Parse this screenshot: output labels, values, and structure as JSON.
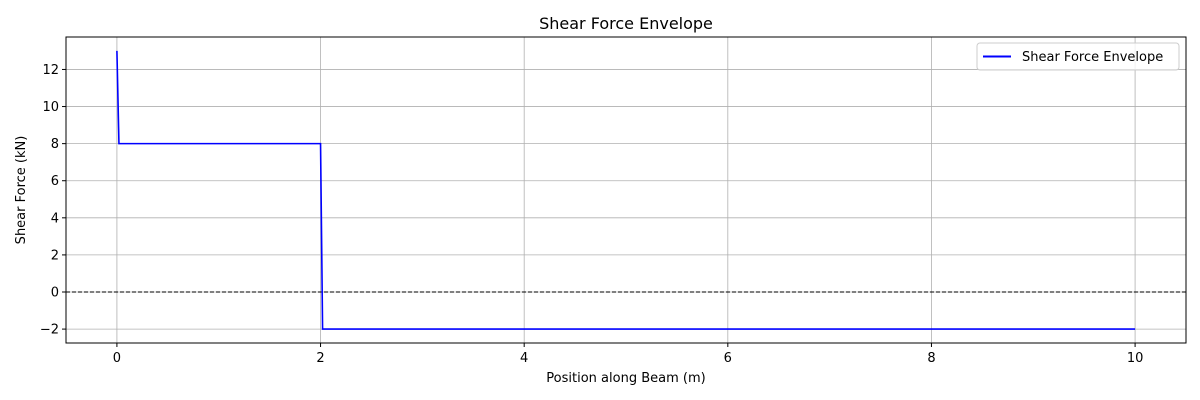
{
  "chart_data": {
    "type": "line",
    "title": "Shear Force Envelope",
    "xlabel": "Position along Beam (m)",
    "ylabel": "Shear Force (kN)",
    "xlim": [
      -0.5,
      10.5
    ],
    "ylim": [
      -2.75,
      13.75
    ],
    "xticks": [
      0,
      2,
      4,
      6,
      8,
      10
    ],
    "yticks": [
      -2,
      0,
      2,
      4,
      6,
      8,
      10,
      12
    ],
    "xtick_labels": [
      "0",
      "2",
      "4",
      "6",
      "8",
      "10"
    ],
    "ytick_labels": [
      "−2",
      "0",
      "2",
      "4",
      "6",
      "8",
      "10",
      "12"
    ],
    "grid": true,
    "legend_position": "top-right",
    "reference_line": {
      "y": 0,
      "style": "dashed",
      "color": "#000000"
    },
    "series": [
      {
        "name": "Shear Force Envelope",
        "color": "#0000ff",
        "x": [
          0,
          0.02,
          2.0,
          2.02,
          10
        ],
        "y": [
          13,
          8,
          8,
          -2,
          -2
        ]
      }
    ]
  }
}
